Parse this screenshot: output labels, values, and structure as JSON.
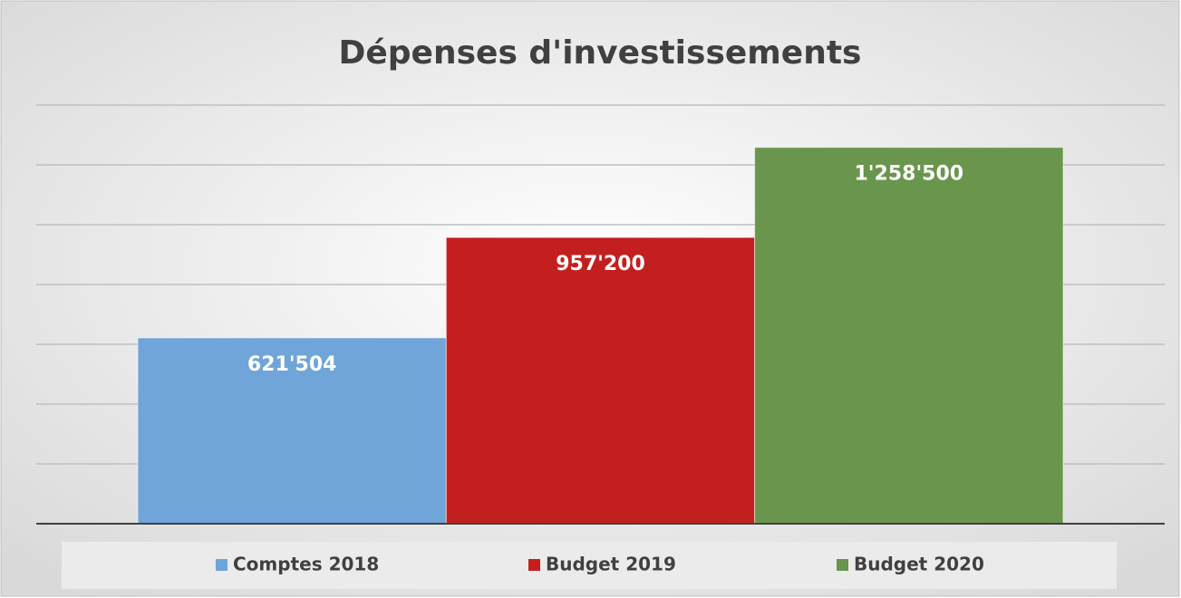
{
  "chart_data": {
    "type": "bar",
    "title": "Dépenses d'investissements",
    "categories": [
      null
    ],
    "series": [
      {
        "name": "Comptes 2018",
        "color": "#6fa5d8",
        "values": [
          621504
        ],
        "value_labels": [
          "621'504"
        ]
      },
      {
        "name": "Budget 2019",
        "color": "#c41f1f",
        "values": [
          957200
        ],
        "value_labels": [
          "957'200"
        ]
      },
      {
        "name": "Budget 2020",
        "color": "#6a954c",
        "values": [
          1258500
        ],
        "value_labels": [
          "1'258'500"
        ]
      }
    ],
    "ylim": [
      0,
      1400000
    ],
    "yticks": [
      0,
      200000,
      400000,
      600000,
      800000,
      1000000,
      1200000,
      1400000
    ],
    "grid": true,
    "legend": "bottom"
  }
}
